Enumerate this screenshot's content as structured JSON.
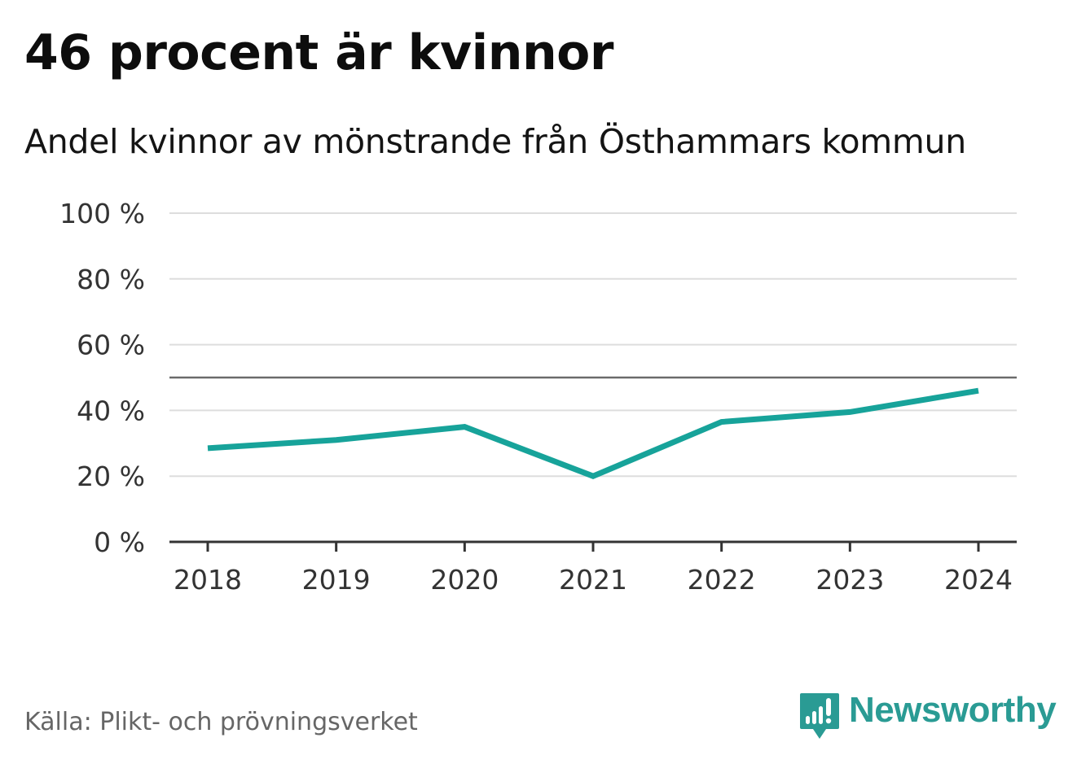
{
  "title": "46 procent är kvinnor",
  "subtitle": "Andel kvinnor av mönstrande från Östhammars kommun",
  "source": "Källa: Plikt- och prövningsverket",
  "brand": {
    "name": "Newsworthy",
    "logo_icon": "bar-chart-speech-bubble-icon",
    "color": "#2a9b94"
  },
  "chart_data": {
    "type": "line",
    "x": [
      "2018",
      "2019",
      "2020",
      "2021",
      "2022",
      "2023",
      "2024"
    ],
    "series": [
      {
        "values": [
          28.5,
          31,
          35,
          20,
          36.5,
          39.5,
          46
        ],
        "color": "#17a39a"
      }
    ],
    "reference_line": 50,
    "reference_line_color": "#6b6b6b",
    "ylim": [
      0,
      100
    ],
    "yticks": [
      0,
      20,
      40,
      60,
      80,
      100
    ],
    "ytick_labels": [
      "0 %",
      "20 %",
      "40 %",
      "60 %",
      "80 %",
      "100 %"
    ],
    "grid": true,
    "grid_color": "#dddddd",
    "axis_color": "#333333"
  }
}
